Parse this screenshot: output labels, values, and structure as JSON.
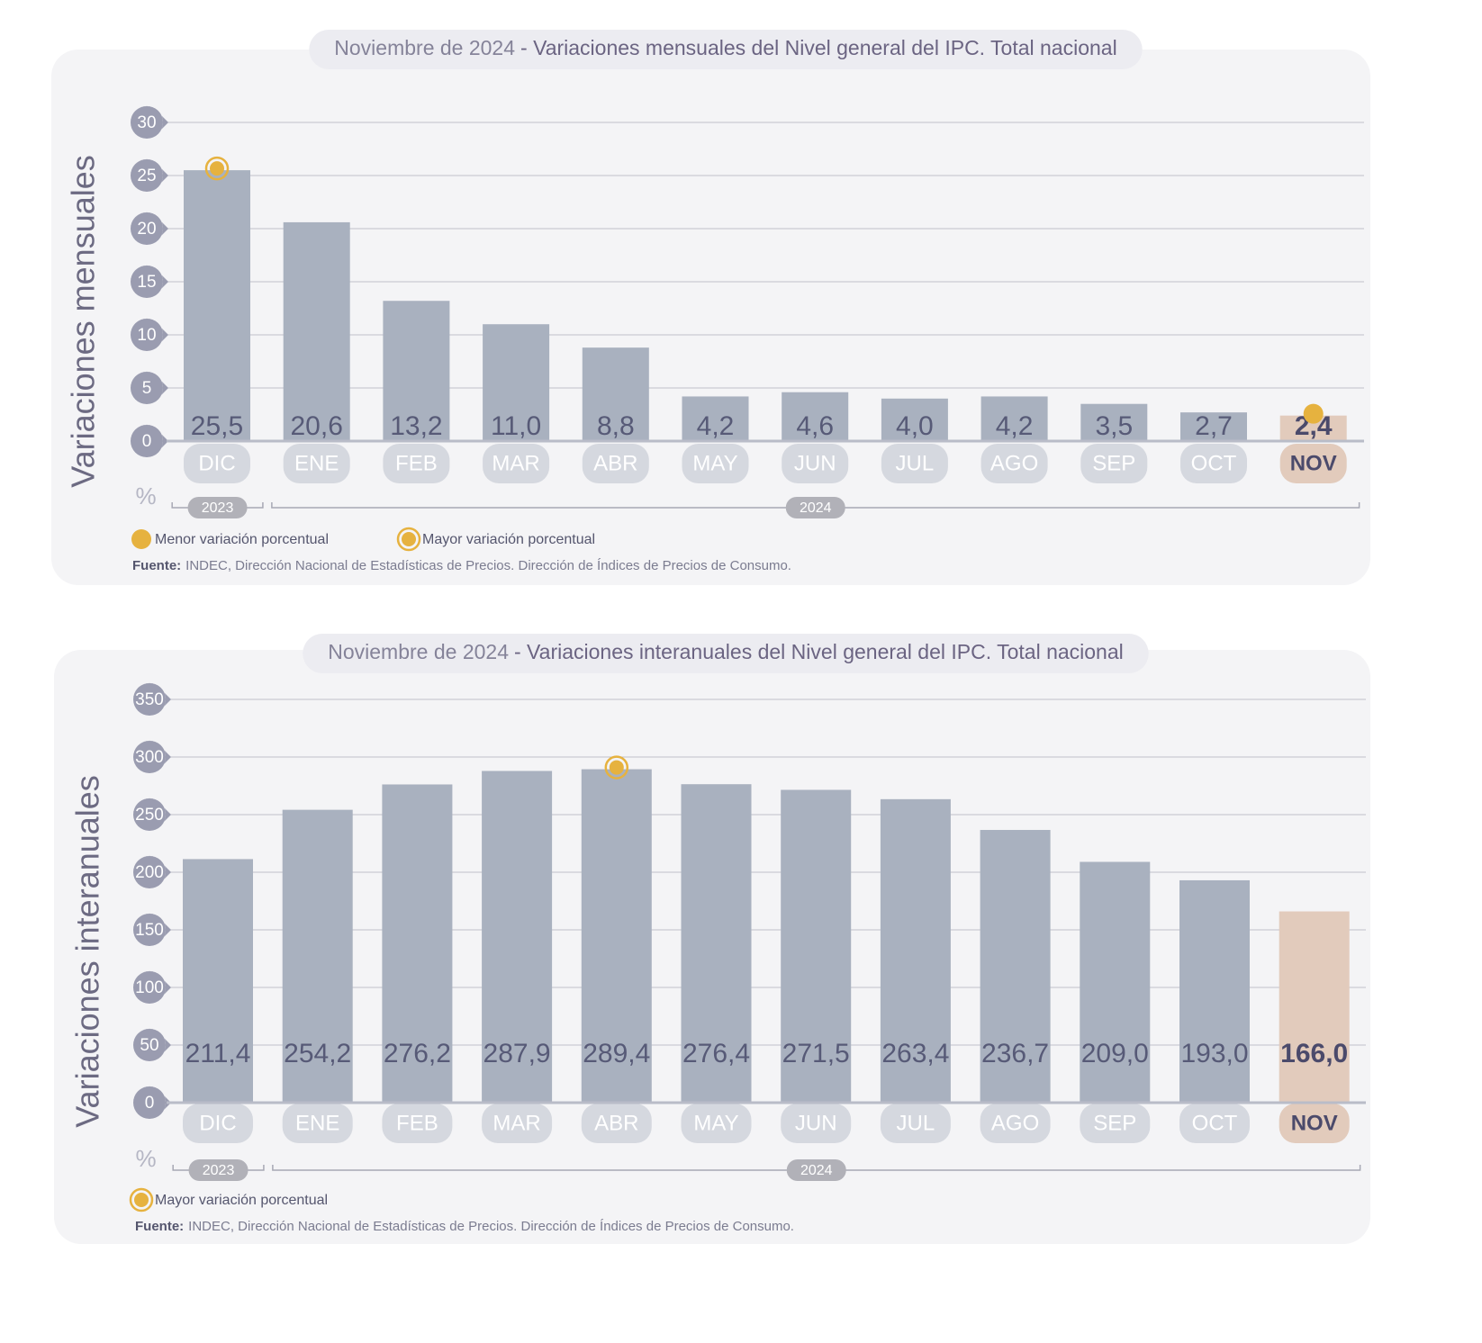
{
  "chart_data": [
    {
      "type": "bar",
      "title_date": "Noviembre de 2024",
      "title": "- Variaciones mensuales del Nivel general del IPC. Total nacional",
      "ylabel": "Variaciones mensuales",
      "unit": "%",
      "categories": [
        "DIC",
        "ENE",
        "FEB",
        "MAR",
        "ABR",
        "MAY",
        "JUN",
        "JUL",
        "AGO",
        "SEP",
        "OCT",
        "NOV"
      ],
      "values": [
        25.5,
        20.6,
        13.2,
        11.0,
        8.8,
        4.2,
        4.6,
        4.0,
        4.2,
        3.5,
        2.7,
        2.4
      ],
      "value_labels": [
        "25,5",
        "20,6",
        "13,2",
        "11,0",
        "8,8",
        "4,2",
        "4,6",
        "4,0",
        "4,2",
        "3,5",
        "2,7",
        "2,4"
      ],
      "color": "#a9b1bf",
      "highlight": {
        "category": "NOV",
        "color": "#e2cbbc"
      },
      "ylim": [
        0,
        30
      ],
      "yticks": [
        0,
        5,
        10,
        15,
        20,
        25,
        30
      ],
      "grid": true,
      "year_groups": [
        {
          "label": "2023",
          "first": "DIC",
          "last": "DIC"
        },
        {
          "label": "2024",
          "first": "ENE",
          "last": "NOV"
        }
      ],
      "markers": [
        {
          "label": "Menor variación porcentual",
          "category": "NOV",
          "style": "filled"
        },
        {
          "label": "Mayor variación porcentual",
          "category": "DIC",
          "style": "ring"
        }
      ],
      "source_label": "Fuente:",
      "source": "INDEC, Dirección Nacional de Estadísticas de Precios. Dirección de Índices de Precios de Consumo."
    },
    {
      "type": "bar",
      "title_date": "Noviembre de 2024",
      "title": "- Variaciones interanuales del Nivel general del IPC. Total nacional",
      "ylabel": "Variaciones interanuales",
      "unit": "%",
      "categories": [
        "DIC",
        "ENE",
        "FEB",
        "MAR",
        "ABR",
        "MAY",
        "JUN",
        "JUL",
        "AGO",
        "SEP",
        "OCT",
        "NOV"
      ],
      "values": [
        211.4,
        254.2,
        276.2,
        287.9,
        289.4,
        276.4,
        271.5,
        263.4,
        236.7,
        209.0,
        193.0,
        166.0
      ],
      "value_labels": [
        "211,4",
        "254,2",
        "276,2",
        "287,9",
        "289,4",
        "276,4",
        "271,5",
        "263,4",
        "236,7",
        "209,0",
        "193,0",
        "166,0"
      ],
      "color": "#a9b1bf",
      "highlight": {
        "category": "NOV",
        "color": "#e2cbbc"
      },
      "ylim": [
        0,
        350
      ],
      "yticks": [
        0,
        50,
        100,
        150,
        200,
        250,
        300,
        350
      ],
      "grid": true,
      "year_groups": [
        {
          "label": "2023",
          "first": "DIC",
          "last": "DIC"
        },
        {
          "label": "2024",
          "first": "ENE",
          "last": "NOV"
        }
      ],
      "markers": [
        {
          "label": "Mayor variación porcentual",
          "category": "ABR",
          "style": "ring"
        }
      ],
      "source_label": "Fuente:",
      "source": "INDEC, Dirección Nacional de Estadísticas de Precios. Dirección de Índices de Precios de Consumo."
    }
  ]
}
